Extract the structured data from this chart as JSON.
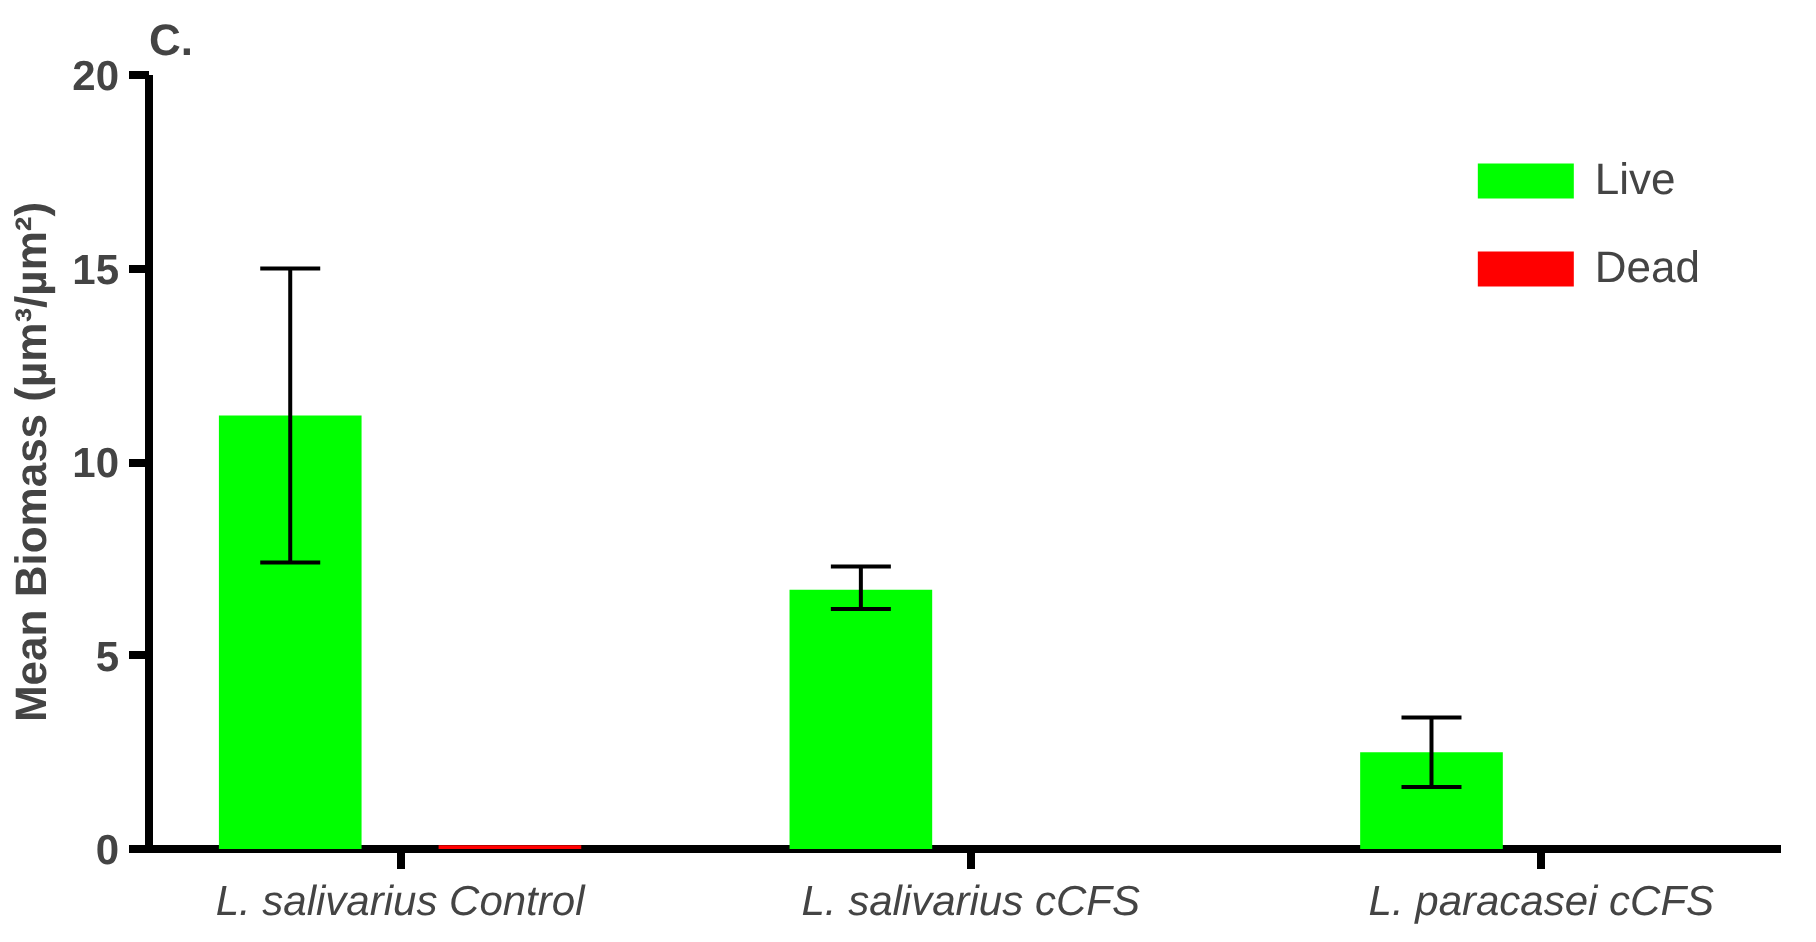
{
  "chart_data": {
    "type": "bar",
    "title": "C.",
    "ylabel": "Mean Biomass (µm³/µm²)",
    "categories": [
      "L. salivarius Control",
      "L. salivarius cCFS",
      "L. paracasei cCFS"
    ],
    "series": [
      {
        "name": "Live",
        "color": "#00ff00",
        "values": [
          11.2,
          6.7,
          2.5
        ],
        "errors": [
          [
            7.4,
            15.0
          ],
          [
            6.2,
            7.3
          ],
          [
            1.6,
            3.4
          ]
        ]
      },
      {
        "name": "Dead",
        "color": "#ff0000",
        "values": [
          0.1,
          0,
          0
        ]
      }
    ],
    "ylim": [
      0,
      20
    ],
    "yticks": [
      0,
      5,
      10,
      15,
      20
    ],
    "grid": false,
    "legend": "top right"
  }
}
